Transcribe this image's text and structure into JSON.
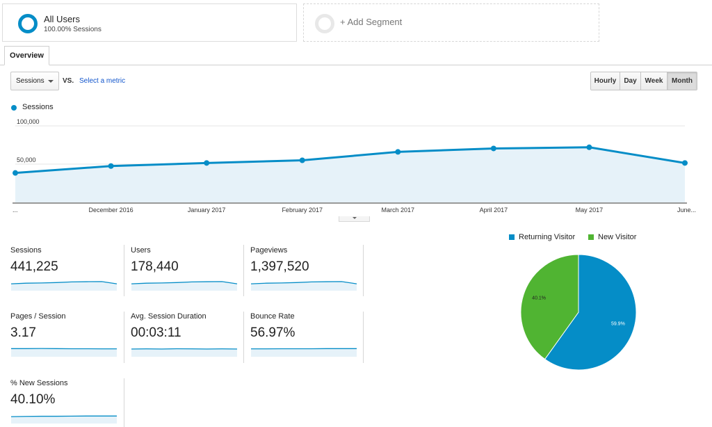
{
  "segments": {
    "all_users": {
      "title": "All Users",
      "subtitle": "100.00% Sessions"
    },
    "add_segment": {
      "label": "+ Add Segment"
    }
  },
  "tabs": {
    "overview": "Overview"
  },
  "controls": {
    "metric": "Sessions",
    "vs": "VS.",
    "select_metric": "Select a metric",
    "time_buttons": [
      "Hourly",
      "Day",
      "Week",
      "Month"
    ],
    "active_time_button": "Month"
  },
  "colors": {
    "sessions": "#058dc7",
    "returning": "#058dc7",
    "new": "#50b432"
  },
  "chart_data": {
    "type": "line",
    "series": [
      {
        "name": "Sessions",
        "values": [
          38500,
          47500,
          51500,
          55000,
          66000,
          70500,
          72000,
          51500
        ]
      }
    ],
    "categories": [
      "...",
      "December 2016",
      "January 2017",
      "February 2017",
      "March 2017",
      "April 2017",
      "May 2017",
      "June..."
    ],
    "y_tick_labels": [
      "100,000",
      "50,000"
    ],
    "y_ticks": [
      100000,
      50000
    ],
    "ylim": [
      0,
      110000
    ],
    "legend": "top-left"
  },
  "metrics": [
    {
      "label": "Sessions",
      "value": "441,225",
      "spark": [
        0.55,
        0.6,
        0.62,
        0.65,
        0.7,
        0.72,
        0.73,
        0.55
      ]
    },
    {
      "label": "Users",
      "value": "178,440",
      "spark": [
        0.55,
        0.6,
        0.62,
        0.65,
        0.7,
        0.72,
        0.73,
        0.55
      ]
    },
    {
      "label": "Pageviews",
      "value": "1,397,520",
      "spark": [
        0.55,
        0.6,
        0.62,
        0.65,
        0.7,
        0.72,
        0.73,
        0.55
      ]
    },
    {
      "label": "Pages / Session",
      "value": "3.17",
      "spark": [
        0.65,
        0.65,
        0.66,
        0.65,
        0.64,
        0.64,
        0.63,
        0.63
      ]
    },
    {
      "label": "Avg. Session Duration",
      "value": "00:03:11",
      "spark": [
        0.62,
        0.63,
        0.62,
        0.64,
        0.63,
        0.62,
        0.63,
        0.62
      ]
    },
    {
      "label": "Bounce Rate",
      "value": "56.97%",
      "spark": [
        0.63,
        0.63,
        0.64,
        0.64,
        0.64,
        0.65,
        0.65,
        0.65
      ]
    },
    {
      "label": "% New Sessions",
      "value": "40.10%",
      "spark": [
        0.55,
        0.57,
        0.58,
        0.58,
        0.59,
        0.6,
        0.6,
        0.6
      ]
    }
  ],
  "pie": {
    "legend": [
      "Returning Visitor",
      "New Visitor"
    ],
    "chart_data": {
      "type": "pie",
      "slices": [
        {
          "name": "Returning Visitor",
          "value": 59.9,
          "label": "59.9%"
        },
        {
          "name": "New Visitor",
          "value": 40.1,
          "label": "40.1%"
        }
      ]
    }
  }
}
